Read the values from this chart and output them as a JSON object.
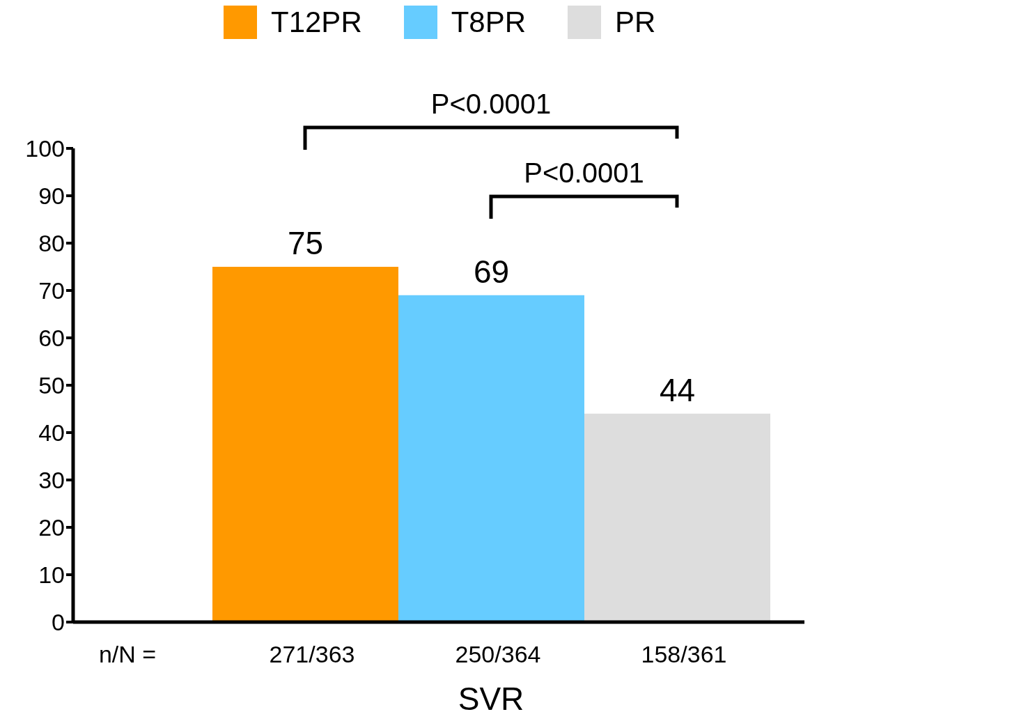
{
  "chart_data": {
    "type": "bar",
    "categories": [
      "SVR"
    ],
    "series": [
      {
        "name": "T12PR",
        "color": "#ff9900",
        "values": [
          75
        ]
      },
      {
        "name": "T8PR",
        "color": "#66ccff",
        "values": [
          69
        ]
      },
      {
        "name": "PR",
        "color": "#dddddd",
        "values": [
          44
        ]
      }
    ],
    "ylim": [
      0,
      100
    ],
    "yticks": [
      0,
      10,
      20,
      30,
      40,
      50,
      60,
      70,
      80,
      90,
      100
    ],
    "grid": false,
    "legend": "top right",
    "data_labels": true,
    "annotations": [
      "P<0.0001",
      "P<0.0001",
      "n/N =",
      "271/363",
      "250/364",
      "158/361"
    ]
  }
}
